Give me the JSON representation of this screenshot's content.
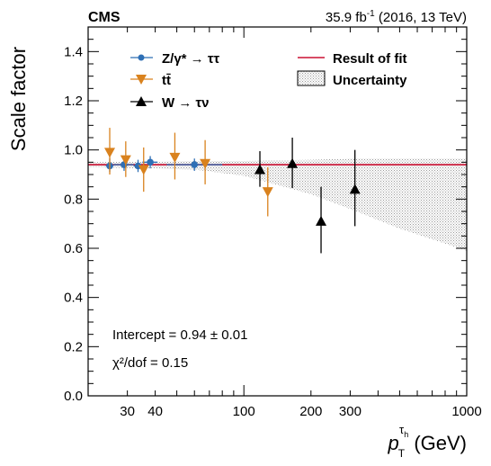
{
  "header": {
    "experiment": "CMS",
    "lumi": "35.9 fb",
    "lumi_exp": "-1",
    "lumi_tail": " (2016, 13 TeV)"
  },
  "chart_data": {
    "type": "scatter",
    "ylabel": "Scale factor",
    "xlabel_main": "p",
    "xlabel_sub": "T",
    "xlabel_sup": "τ",
    "xlabel_supsub": "h",
    "xlabel_unit": " (GeV)",
    "xscale": "log",
    "xlim": [
      20,
      1000
    ],
    "ylim": [
      0.0,
      1.5
    ],
    "x_ticks": [
      30,
      40,
      100,
      200,
      300,
      1000
    ],
    "x_tick_labels": [
      "30",
      "40",
      "100",
      "200",
      "300",
      "1000"
    ],
    "y_ticks": [
      0.0,
      0.2,
      0.4,
      0.6,
      0.8,
      1.0,
      1.2,
      1.4
    ],
    "y_tick_labels": [
      "0.0",
      "0.2",
      "0.4",
      "0.6",
      "0.8",
      "1.0",
      "1.2",
      "1.4"
    ],
    "grid": false,
    "legend_left": [
      {
        "label": "Z/γ*  →  ττ",
        "series": 0
      },
      {
        "label": "tt̄",
        "series": 1
      },
      {
        "label": "W  →  τν",
        "series": 2
      }
    ],
    "legend_right": [
      {
        "label": "Result of fit",
        "kind": "line"
      },
      {
        "label": "Uncertainty",
        "kind": "band"
      }
    ],
    "fit": {
      "value": 0.94,
      "color": "#cc1133",
      "band": [
        {
          "x": 20,
          "lo": 0.93,
          "hi": 0.95
        },
        {
          "x": 60,
          "lo": 0.92,
          "hi": 0.955
        },
        {
          "x": 100,
          "lo": 0.895,
          "hi": 0.955
        },
        {
          "x": 200,
          "lo": 0.82,
          "hi": 0.96
        },
        {
          "x": 300,
          "lo": 0.76,
          "hi": 0.965
        },
        {
          "x": 500,
          "lo": 0.68,
          "hi": 0.965
        },
        {
          "x": 1000,
          "lo": 0.59,
          "hi": 0.965
        }
      ]
    },
    "series": [
      {
        "name": "Z/γ*  →  ττ",
        "color": "#2e6fb5",
        "marker": "circle",
        "points": [
          {
            "x": 25,
            "y": 0.935,
            "ylo": 0.91,
            "yhi": 0.965,
            "xlo": 24,
            "xhi": 26
          },
          {
            "x": 29,
            "y": 0.94,
            "ylo": 0.915,
            "yhi": 0.965,
            "xlo": 26,
            "xhi": 32
          },
          {
            "x": 33.5,
            "y": 0.935,
            "ylo": 0.91,
            "yhi": 0.96,
            "xlo": 32,
            "xhi": 35
          },
          {
            "x": 38,
            "y": 0.95,
            "ylo": 0.925,
            "yhi": 0.975,
            "xlo": 35,
            "xhi": 41
          },
          {
            "x": 60,
            "y": 0.94,
            "ylo": 0.915,
            "yhi": 0.965,
            "xlo": 45,
            "xhi": 80
          }
        ]
      },
      {
        "name": "tt̄",
        "color": "#d9821e",
        "marker": "triangle-down",
        "points": [
          {
            "x": 25,
            "y": 0.99,
            "ylo": 0.9,
            "yhi": 1.09
          },
          {
            "x": 29.5,
            "y": 0.96,
            "ylo": 0.89,
            "yhi": 1.035
          },
          {
            "x": 35.5,
            "y": 0.92,
            "ylo": 0.83,
            "yhi": 1.01
          },
          {
            "x": 49,
            "y": 0.97,
            "ylo": 0.88,
            "yhi": 1.07
          },
          {
            "x": 67,
            "y": 0.945,
            "ylo": 0.86,
            "yhi": 1.04
          },
          {
            "x": 128,
            "y": 0.83,
            "ylo": 0.73,
            "yhi": 0.93
          }
        ]
      },
      {
        "name": "W  →  τν",
        "color": "#000000",
        "marker": "triangle-up",
        "points": [
          {
            "x": 118,
            "y": 0.92,
            "ylo": 0.85,
            "yhi": 0.995
          },
          {
            "x": 165,
            "y": 0.945,
            "ylo": 0.845,
            "yhi": 1.05
          },
          {
            "x": 222,
            "y": 0.71,
            "ylo": 0.58,
            "yhi": 0.85
          },
          {
            "x": 315,
            "y": 0.84,
            "ylo": 0.69,
            "yhi": 1.0
          }
        ]
      }
    ],
    "annotations": {
      "intercept": "Intercept = 0.94 ± 0.01",
      "chi2": "χ²/dof = 0.15"
    }
  }
}
